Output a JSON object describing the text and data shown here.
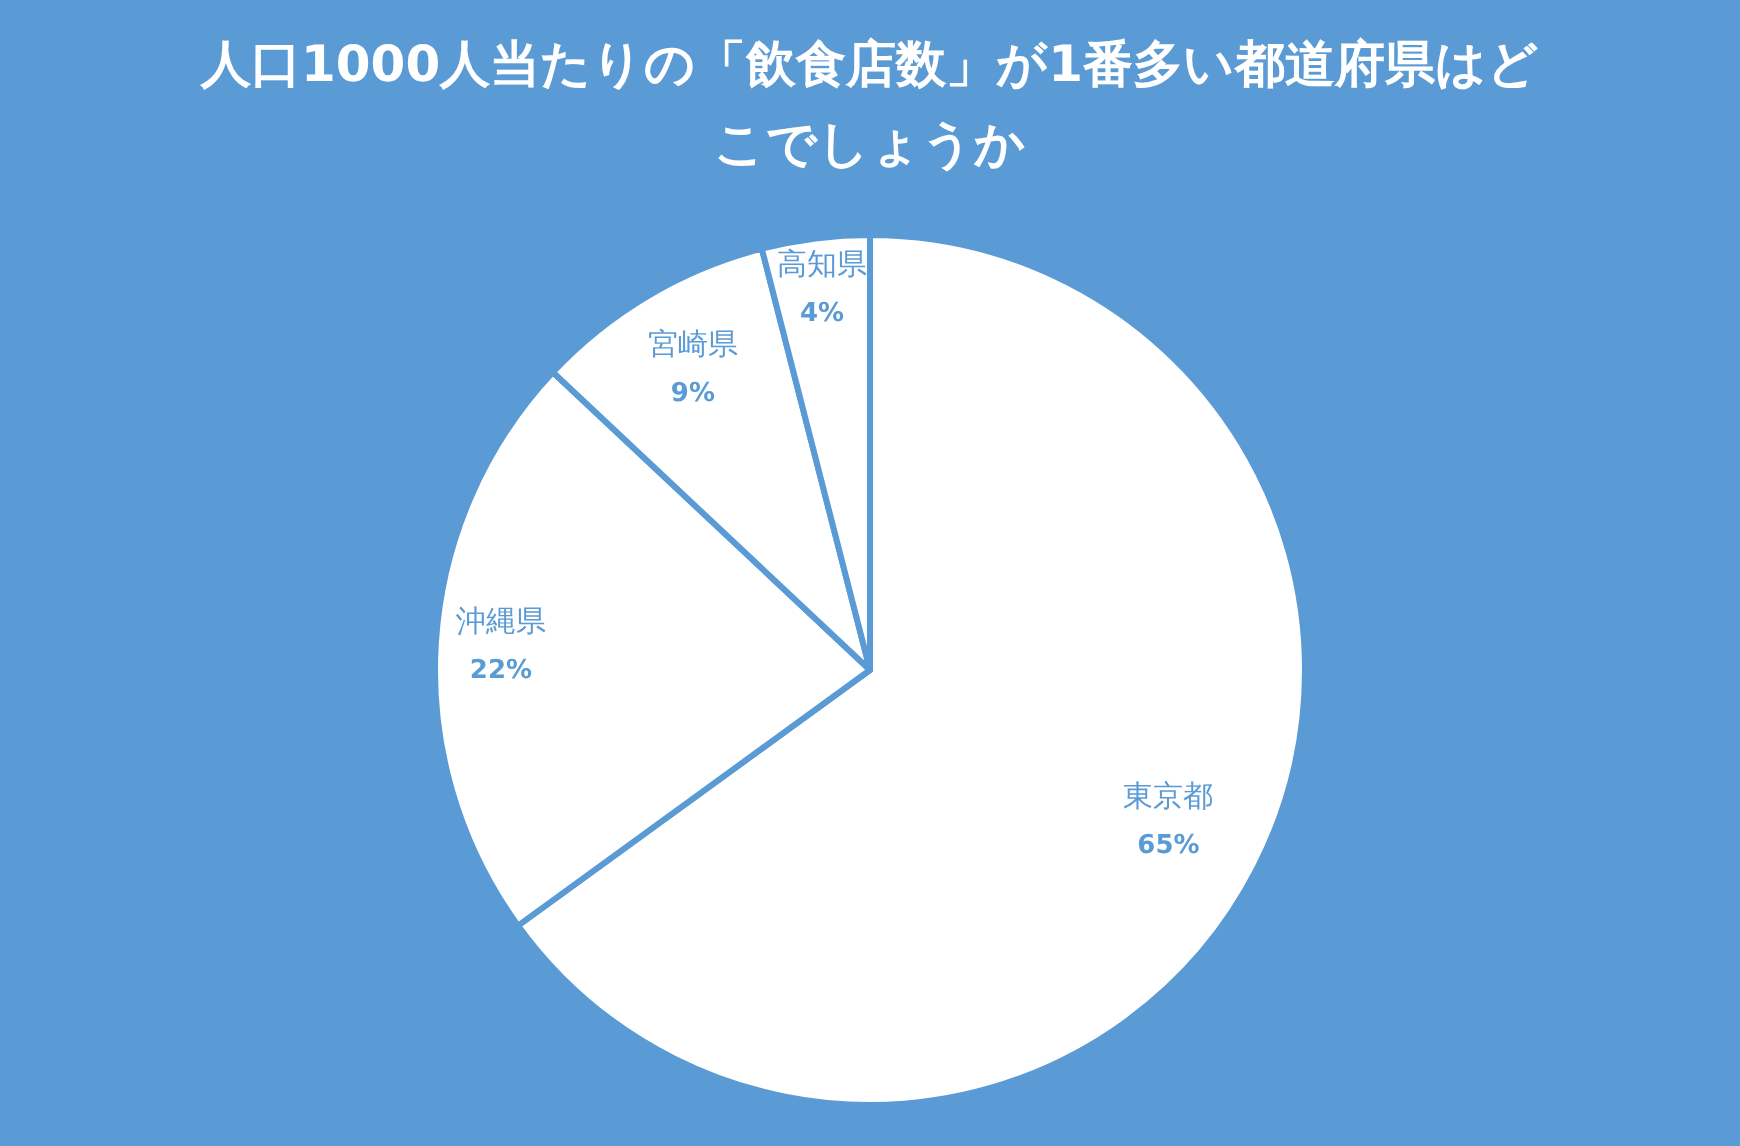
{
  "chart_data": {
    "type": "pie",
    "title": "人口1000人当たりの「飲食店数」が1番多い都道府県はどこでしょうか",
    "categories": [
      "東京都",
      "沖縄県",
      "宮崎県",
      "高知県"
    ],
    "values": [
      65,
      22,
      9,
      4
    ],
    "colors": [
      "#ffffff",
      "#ffffff",
      "#ffffff",
      "#ffffff"
    ],
    "value_labels": [
      "65%",
      "22%",
      "9%",
      "4%"
    ],
    "legend": false
  }
}
